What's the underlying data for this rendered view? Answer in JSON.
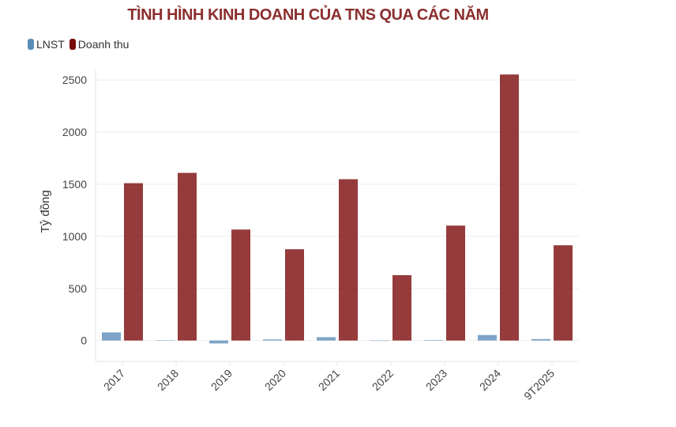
{
  "chart_data": {
    "type": "bar",
    "title": "TÌNH HÌNH KINH DOANH CỦA TNS QUA CÁC NĂM",
    "xlabel": "",
    "ylabel": "Tỷ đồng",
    "categories": [
      "2017",
      "2018",
      "2019",
      "2020",
      "2021",
      "2022",
      "2023",
      "2024",
      "9T2025"
    ],
    "series": [
      {
        "name": "LNST",
        "color": "#5b8db8",
        "values": [
          78,
          1,
          -28,
          10,
          32,
          -1,
          5,
          53,
          14
        ]
      },
      {
        "name": "Doanh thu",
        "color": "#7a0a0a",
        "values": [
          1510,
          1609,
          1065,
          876,
          1548,
          627,
          1103,
          2553,
          914
        ]
      }
    ],
    "ylim": [
      -200,
      2600
    ],
    "yticks": [
      0,
      500,
      1000,
      1500,
      2000,
      2500
    ],
    "grid": true,
    "legend": "top-left"
  }
}
